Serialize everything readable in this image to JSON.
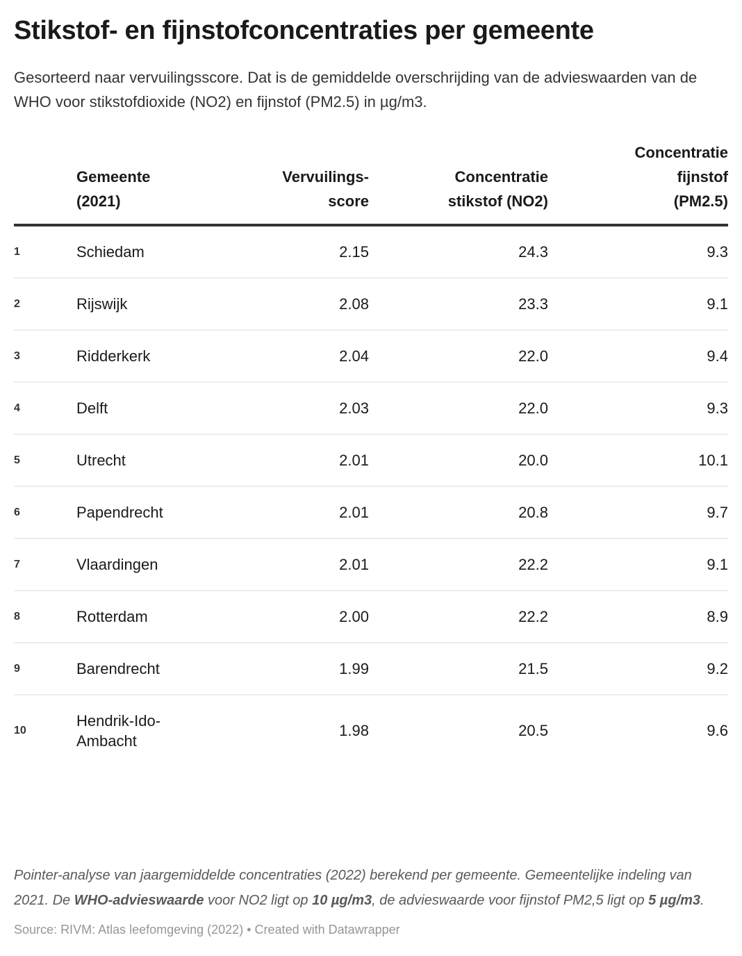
{
  "header": {
    "title": "Stikstof- en fijnstofconcentraties per gemeente",
    "subtitle": "Gesorteerd naar vervuilingsscore. Dat is de gemiddelde overschrijding van de advieswaarden van de WHO voor stikstofdioxide (NO2) en fijnstof (PM2.5) in µg/m3."
  },
  "table": {
    "columns": {
      "rank": "",
      "gemeente": "Gemeente\n(2021)",
      "score": "Vervuilings-\nscore",
      "no2": "Concentratie\nstikstof (NO2)",
      "pm25": "Concentratie\nfijnstof\n(PM2.5)"
    },
    "rows": [
      {
        "rank": "1",
        "gemeente": "Schiedam",
        "score": "2.15",
        "no2": "24.3",
        "pm25": "9.3"
      },
      {
        "rank": "2",
        "gemeente": "Rijswijk",
        "score": "2.08",
        "no2": "23.3",
        "pm25": "9.1"
      },
      {
        "rank": "3",
        "gemeente": "Ridderkerk",
        "score": "2.04",
        "no2": "22.0",
        "pm25": "9.4"
      },
      {
        "rank": "4",
        "gemeente": "Delft",
        "score": "2.03",
        "no2": "22.0",
        "pm25": "9.3"
      },
      {
        "rank": "5",
        "gemeente": "Utrecht",
        "score": "2.01",
        "no2": "20.0",
        "pm25": "10.1"
      },
      {
        "rank": "6",
        "gemeente": "Papendrecht",
        "score": "2.01",
        "no2": "20.8",
        "pm25": "9.7"
      },
      {
        "rank": "7",
        "gemeente": "Vlaardingen",
        "score": "2.01",
        "no2": "22.2",
        "pm25": "9.1"
      },
      {
        "rank": "8",
        "gemeente": "Rotterdam",
        "score": "2.00",
        "no2": "22.2",
        "pm25": "8.9"
      },
      {
        "rank": "9",
        "gemeente": "Barendrecht",
        "score": "1.99",
        "no2": "21.5",
        "pm25": "9.2"
      },
      {
        "rank": "10",
        "gemeente": "Hendrik-Ido-Ambacht",
        "score": "1.98",
        "no2": "20.5",
        "pm25": "9.6"
      }
    ]
  },
  "footer": {
    "notes_segments": [
      {
        "text": "Pointer-analyse van jaargemiddelde concentraties (2022) berekend per gemeente. Gemeentelijke indeling van 2021. De ",
        "bold": false
      },
      {
        "text": "WHO-advieswaarde",
        "bold": true
      },
      {
        "text": " voor NO2 ligt op ",
        "bold": false
      },
      {
        "text": "10 µg/m3",
        "bold": true
      },
      {
        "text": ", de advieswaarde voor fijnstof PM2,5 ligt op ",
        "bold": false
      },
      {
        "text": "5 µg/m3",
        "bold": true
      },
      {
        "text": ".",
        "bold": false
      }
    ],
    "source_label": "Source:",
    "source_name": "RIVM: Atlas leefomgeving (2022)",
    "separator": "•",
    "credit": "Created with Datawrapper"
  },
  "colors": {
    "background": "#ffffff",
    "title_text": "#1a1a1a",
    "body_text": "#333333",
    "notes_text": "#595959",
    "source_text": "#969696",
    "header_rule": "#333333",
    "row_divider": "#ececec"
  },
  "chart_data": {
    "type": "table",
    "title": "Stikstof- en fijnstofconcentraties per gemeente",
    "subtitle": "Gesorteerd naar vervuilingsscore. Dat is de gemiddelde overschrijding van de advieswaarden van de WHO voor stikstofdioxide (NO2) en fijnstof (PM2.5) in µg/m3.",
    "columns": [
      "Rank",
      "Gemeente (2021)",
      "Vervuilingsscore",
      "Concentratie stikstof (NO2)",
      "Concentratie fijnstof (PM2.5)"
    ],
    "rows": [
      [
        1,
        "Schiedam",
        2.15,
        24.3,
        9.3
      ],
      [
        2,
        "Rijswijk",
        2.08,
        23.3,
        9.1
      ],
      [
        3,
        "Ridderkerk",
        2.04,
        22.0,
        9.4
      ],
      [
        4,
        "Delft",
        2.03,
        22.0,
        9.3
      ],
      [
        5,
        "Utrecht",
        2.01,
        20.0,
        10.1
      ],
      [
        6,
        "Papendrecht",
        2.01,
        20.8,
        9.7
      ],
      [
        7,
        "Vlaardingen",
        2.01,
        22.2,
        9.1
      ],
      [
        8,
        "Rotterdam",
        2.0,
        22.2,
        8.9
      ],
      [
        9,
        "Barendrecht",
        1.99,
        21.5,
        9.2
      ],
      [
        10,
        "Hendrik-Ido-Ambacht",
        1.98,
        20.5,
        9.6
      ]
    ],
    "notes": "Pointer-analyse van jaargemiddelde concentraties (2022) berekend per gemeente. Gemeentelijke indeling van 2021. De WHO-advieswaarde voor NO2 ligt op 10 µg/m3, de advieswaarde voor fijnstof PM2,5 ligt op 5 µg/m3.",
    "source": "RIVM: Atlas leefomgeving (2022)"
  }
}
